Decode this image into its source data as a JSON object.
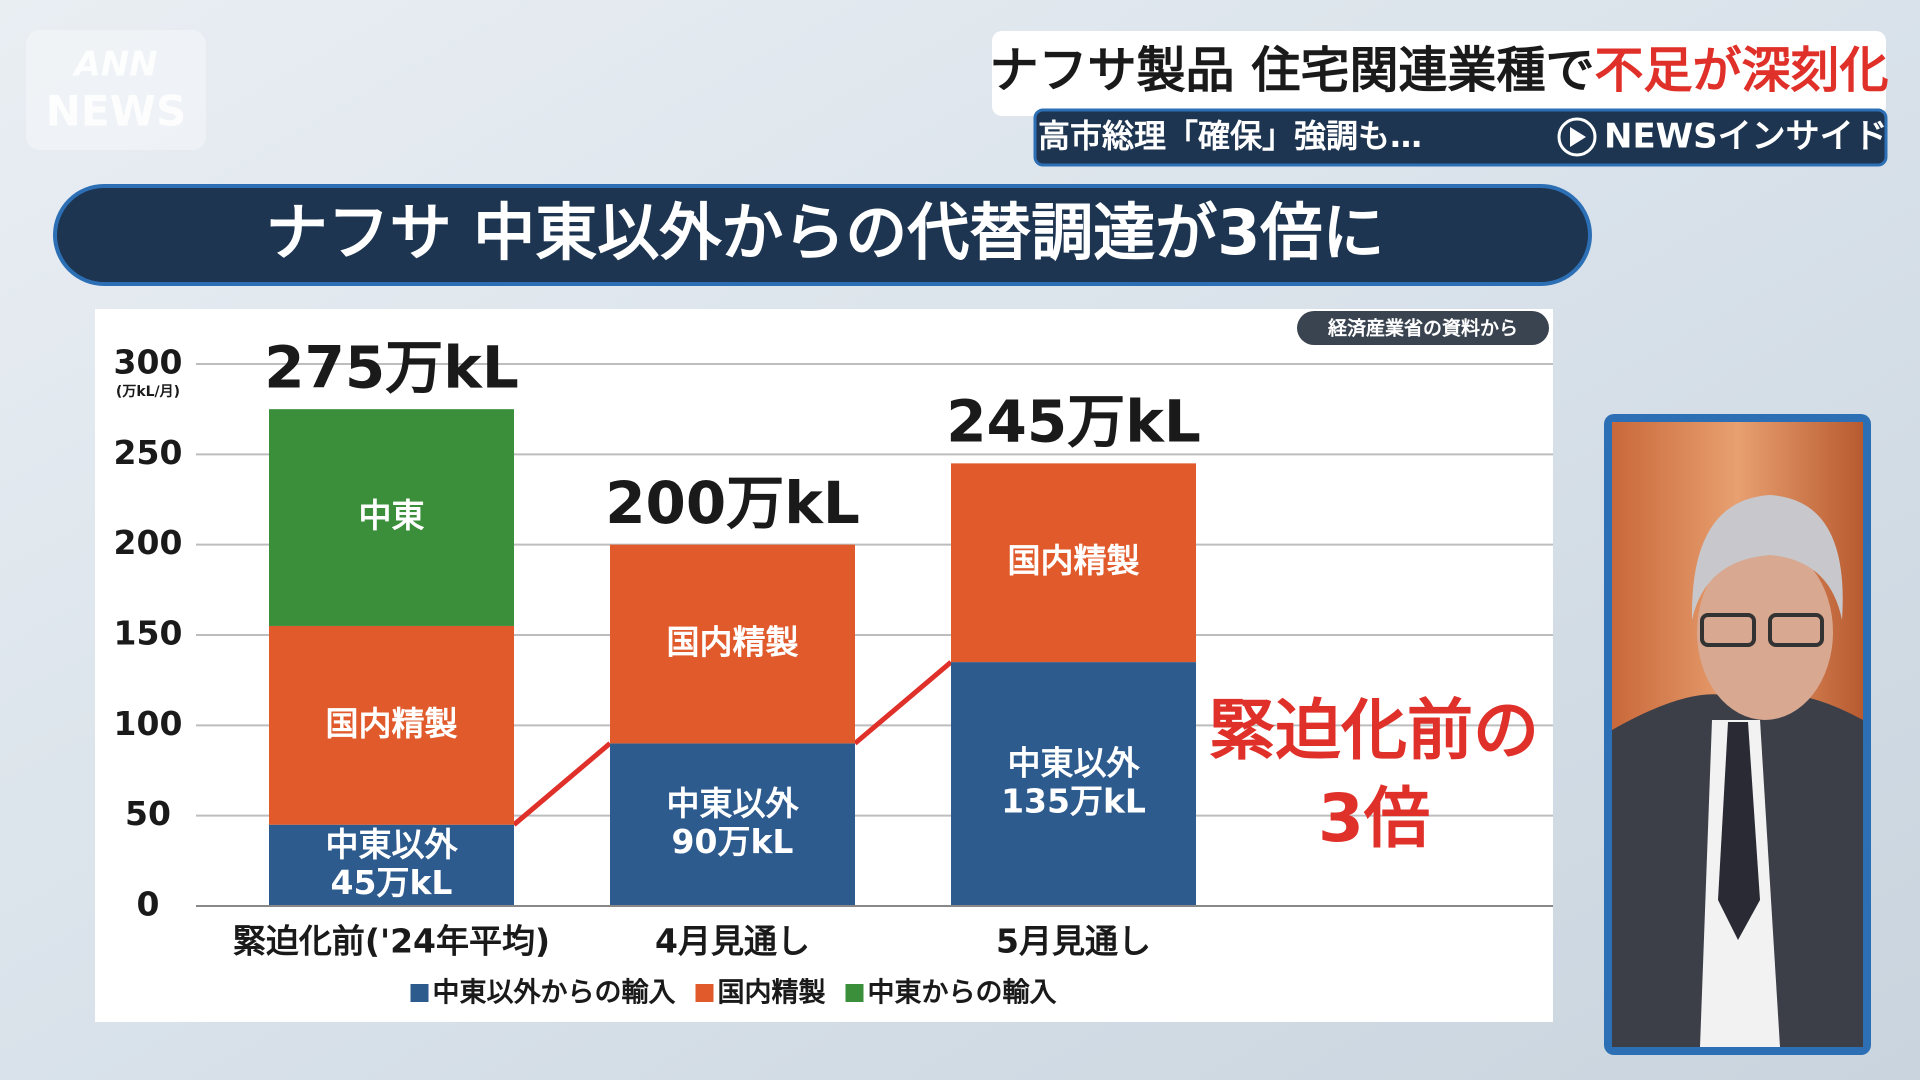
{
  "broadcast": {
    "logo": [
      "ANN",
      "NEWS"
    ],
    "headline": [
      "ナフサ製品 住宅関連業種で",
      "不足が深刻化"
    ],
    "subheadline": "高市総理「確保」強調も…",
    "program": "NEWSインサイド"
  },
  "chart_data": {
    "type": "bar",
    "stacked": true,
    "title": "ナフサ 中東以外からの代替調達が3倍に",
    "source": "経済産業省の資料から",
    "y_unit": "(万kL/月)",
    "categories": [
      "緊迫化前('24年平均)",
      "4月見通し",
      "5月見通し"
    ],
    "series": [
      {
        "name": "中東以外からの輸入",
        "label": "中東以外",
        "color": "#2d5b8e",
        "values": [
          45,
          90,
          135
        ],
        "value_labels": [
          "45万kL",
          "90万kL",
          "135万kL"
        ]
      },
      {
        "name": "国内精製",
        "label": "国内精製",
        "color": "#e05a2b",
        "values": [
          110,
          110,
          110
        ]
      },
      {
        "name": "中東からの輸入",
        "label": "中東",
        "color": "#3b8f3b",
        "values": [
          120,
          null,
          null
        ]
      }
    ],
    "totals": [
      275,
      200,
      245
    ],
    "total_labels": [
      "275万kL",
      "200万kL",
      "245万kL"
    ],
    "ylim": [
      0,
      300
    ],
    "yticks": [
      0,
      50,
      100,
      150,
      200,
      250,
      300
    ],
    "grid": true,
    "legend": "bottom",
    "annotation": [
      "緊迫化前の",
      "3倍"
    ],
    "connector_color": "#e0302a"
  }
}
